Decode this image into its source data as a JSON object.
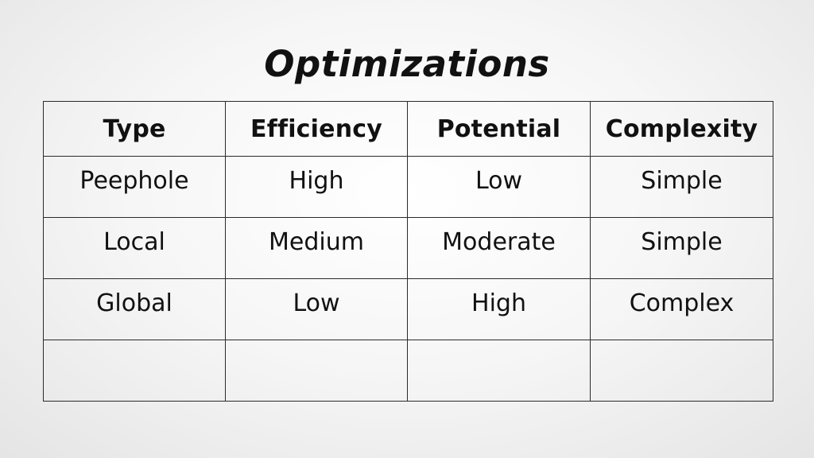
{
  "slide": {
    "title": "Optimizations"
  },
  "table": {
    "headers": [
      "Type",
      "Efficiency",
      "Potential",
      "Complexity"
    ],
    "rows": [
      [
        "Peephole",
        "High",
        "Low",
        "Simple"
      ],
      [
        "Local",
        "Medium",
        "Moderate",
        "Simple"
      ],
      [
        "Global",
        "Low",
        "High",
        "Complex"
      ],
      [
        "",
        "",
        "",
        ""
      ]
    ]
  }
}
